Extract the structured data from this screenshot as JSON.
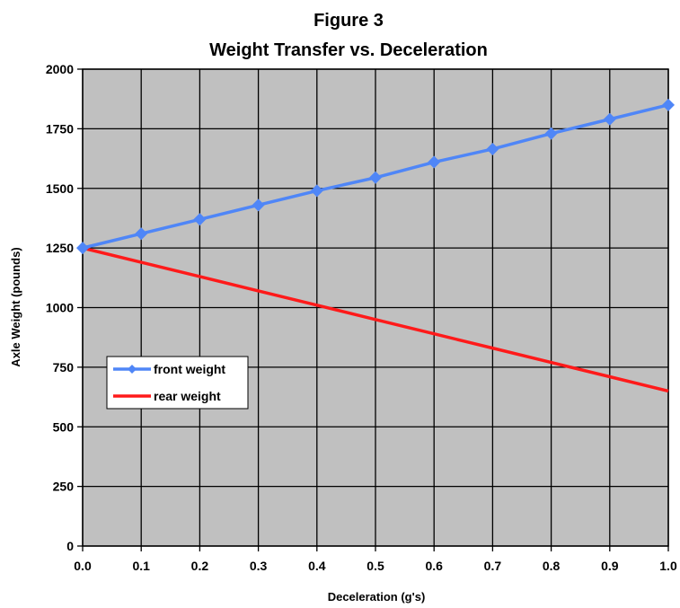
{
  "chart_data": {
    "type": "line",
    "title_line1": "Figure 3",
    "title_line2": "Weight Transfer vs. Deceleration",
    "xlabel": "Deceleration (g's)",
    "ylabel": "Axle Weight (pounds)",
    "xlim": [
      0,
      1
    ],
    "ylim": [
      0,
      2000
    ],
    "x_ticks": [
      "0.0",
      "0.1",
      "0.2",
      "0.3",
      "0.4",
      "0.5",
      "0.6",
      "0.7",
      "0.8",
      "0.9",
      "1.0"
    ],
    "y_ticks": [
      "0",
      "250",
      "500",
      "750",
      "1000",
      "1250",
      "1500",
      "1750",
      "2000"
    ],
    "grid": true,
    "plot_background": "#c0c0c0",
    "legend_position": "left-middle",
    "x": [
      0.0,
      0.1,
      0.2,
      0.3,
      0.4,
      0.5,
      0.6,
      0.7,
      0.8,
      0.9,
      1.0
    ],
    "series": [
      {
        "name": "front weight",
        "color": "#4f86f7",
        "marker": "diamond",
        "values": [
          1250,
          1310,
          1370,
          1430,
          1490,
          1545,
          1610,
          1665,
          1730,
          1790,
          1850
        ]
      },
      {
        "name": "rear weight",
        "color": "#ff1a1a",
        "marker": "none",
        "values": [
          1250,
          1190,
          1130,
          1070,
          1010,
          950,
          890,
          830,
          770,
          710,
          650
        ]
      }
    ]
  }
}
